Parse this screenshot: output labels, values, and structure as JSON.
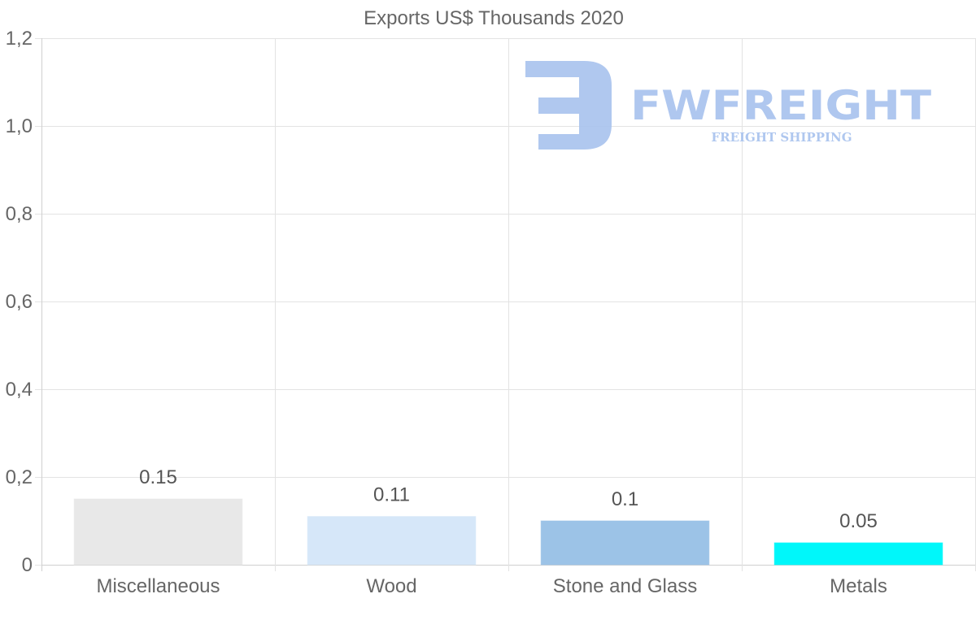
{
  "watermark": {
    "brand": "FWFREIGHT",
    "tagline": "FREIGHT SHIPPING"
  },
  "chart_data": {
    "type": "bar",
    "title": "Exports US$ Thousands 2020",
    "categories": [
      "Miscellaneous",
      "Wood",
      "Stone and Glass",
      "Metals"
    ],
    "values": [
      0.15,
      0.11,
      0.1,
      0.05
    ],
    "value_labels": [
      "0.15",
      "0.11",
      "0.1",
      "0.05"
    ],
    "colors": [
      "#e8e8e8",
      "#d6e7f9",
      "#9cc3e7",
      "#00f7fa"
    ],
    "ylim": [
      0,
      1.2
    ],
    "yticks": [
      0,
      0.2,
      0.4,
      0.6,
      0.8,
      1.0,
      1.2
    ],
    "ytick_labels": [
      "0",
      "0,2",
      "0,4",
      "0,6",
      "0,8",
      "1,0",
      "1,2"
    ],
    "xlabel": "",
    "ylabel": "",
    "grid": true,
    "legend": "none"
  }
}
